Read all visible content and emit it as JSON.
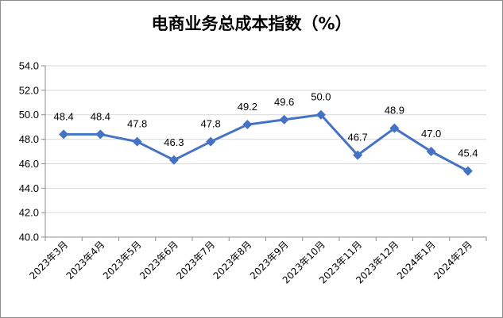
{
  "chart_data": {
    "type": "line",
    "title": "电商业务总成本指数（%）",
    "categories": [
      "2023年3月",
      "2023年4月",
      "2023年5月",
      "2023年6月",
      "2023年7月",
      "2023年8月",
      "2023年9月",
      "2023年10月",
      "2023年11月",
      "2023年12月",
      "2024年1月",
      "2024年2月"
    ],
    "series": [
      {
        "values": [
          48.4,
          48.4,
          47.8,
          46.3,
          47.8,
          49.2,
          49.6,
          50.0,
          46.7,
          48.9,
          47.0,
          45.4
        ]
      }
    ],
    "data_labels": [
      "48.4",
      "48.4",
      "47.8",
      "46.3",
      "47.8",
      "49.2",
      "49.6",
      "50.0",
      "46.7",
      "48.9",
      "47.0",
      "45.4"
    ],
    "y_ticks": [
      "40.0",
      "42.0",
      "44.0",
      "46.0",
      "48.0",
      "50.0",
      "52.0",
      "54.0"
    ],
    "ylim": [
      40,
      54
    ],
    "ystep": 2,
    "grid": true,
    "legend": "none",
    "colors": {
      "line": "#4472c4",
      "marker": "#4472c4",
      "grid": "#d9d9d9",
      "axis": "#8c8c8c"
    }
  }
}
